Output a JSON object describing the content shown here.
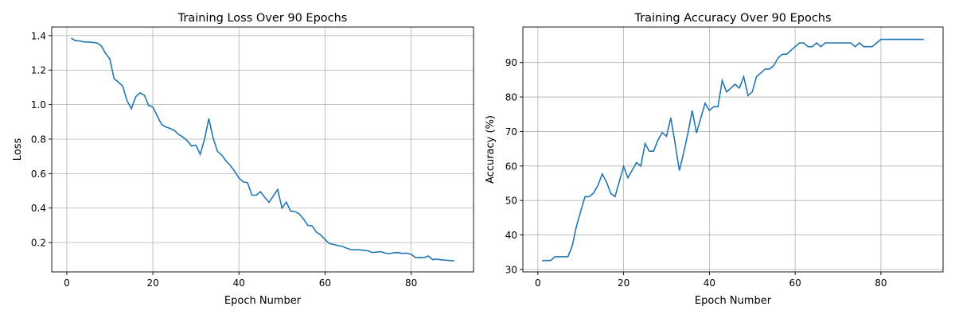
{
  "chart_data": [
    {
      "type": "line",
      "title": "Training Loss Over 90 Epochs",
      "xlabel": "Epoch Number",
      "ylabel": "Loss",
      "xlim": [
        -3.5,
        94.5
      ],
      "ylim": [
        0.03,
        1.45
      ],
      "xticks": [
        0,
        20,
        40,
        60,
        80
      ],
      "yticks": [
        0.2,
        0.4,
        0.6,
        0.8,
        1.0,
        1.2,
        1.4
      ],
      "ytick_labels": [
        "0.2",
        "0.4",
        "0.6",
        "0.8",
        "1.0",
        "1.2",
        "1.4"
      ],
      "grid": true,
      "color": "#1f77b4",
      "x": [
        1,
        2,
        3,
        4,
        5,
        6,
        7,
        8,
        9,
        10,
        11,
        12,
        13,
        14,
        15,
        16,
        17,
        18,
        19,
        20,
        21,
        22,
        23,
        24,
        25,
        26,
        27,
        28,
        29,
        30,
        31,
        32,
        33,
        34,
        35,
        36,
        37,
        38,
        39,
        40,
        41,
        42,
        43,
        44,
        45,
        46,
        47,
        48,
        49,
        50,
        51,
        52,
        53,
        54,
        55,
        56,
        57,
        58,
        59,
        60,
        61,
        62,
        63,
        64,
        65,
        66,
        67,
        68,
        69,
        70,
        71,
        72,
        73,
        74,
        75,
        76,
        77,
        78,
        79,
        80,
        81,
        82,
        83,
        84,
        85,
        86,
        87,
        88,
        89,
        90
      ],
      "y": [
        1.386,
        1.371,
        1.369,
        1.364,
        1.363,
        1.361,
        1.358,
        1.341,
        1.298,
        1.264,
        1.151,
        1.13,
        1.108,
        1.023,
        0.976,
        1.045,
        1.068,
        1.055,
        0.996,
        0.986,
        0.936,
        0.886,
        0.87,
        0.862,
        0.85,
        0.827,
        0.812,
        0.79,
        0.76,
        0.765,
        0.712,
        0.8,
        0.92,
        0.806,
        0.73,
        0.707,
        0.673,
        0.647,
        0.613,
        0.574,
        0.552,
        0.547,
        0.475,
        0.475,
        0.495,
        0.462,
        0.433,
        0.471,
        0.508,
        0.4,
        0.435,
        0.382,
        0.38,
        0.366,
        0.337,
        0.3,
        0.297,
        0.26,
        0.244,
        0.218,
        0.194,
        0.189,
        0.183,
        0.178,
        0.168,
        0.159,
        0.158,
        0.158,
        0.155,
        0.152,
        0.142,
        0.145,
        0.147,
        0.139,
        0.136,
        0.141,
        0.142,
        0.137,
        0.139,
        0.133,
        0.113,
        0.114,
        0.113,
        0.122,
        0.101,
        0.104,
        0.1,
        0.098,
        0.096,
        0.094
      ]
    },
    {
      "type": "line",
      "title": "Training Accuracy Over 90 Epochs",
      "xlabel": "Epoch Number",
      "ylabel": "Accuracy (%)",
      "xlim": [
        -3.5,
        94.5
      ],
      "ylim": [
        29.3,
        100.3
      ],
      "xticks": [
        0,
        20,
        40,
        60,
        80
      ],
      "yticks": [
        30,
        40,
        50,
        60,
        70,
        80,
        90
      ],
      "ytick_labels": [
        "30",
        "40",
        "50",
        "60",
        "70",
        "80",
        "90"
      ],
      "grid": true,
      "color": "#1f77b4",
      "x": [
        1,
        2,
        3,
        4,
        5,
        6,
        7,
        8,
        9,
        10,
        11,
        12,
        13,
        14,
        15,
        16,
        17,
        18,
        19,
        20,
        21,
        22,
        23,
        24,
        25,
        26,
        27,
        28,
        29,
        30,
        31,
        32,
        33,
        34,
        35,
        36,
        37,
        38,
        39,
        40,
        41,
        42,
        43,
        44,
        45,
        46,
        47,
        48,
        49,
        50,
        51,
        52,
        53,
        54,
        55,
        56,
        57,
        58,
        59,
        60,
        61,
        62,
        63,
        64,
        65,
        66,
        67,
        68,
        69,
        70,
        71,
        72,
        73,
        74,
        75,
        76,
        77,
        78,
        79,
        80,
        81,
        82,
        83,
        84,
        85,
        86,
        87,
        88,
        89,
        90
      ],
      "y": [
        32.6,
        32.6,
        32.6,
        33.7,
        33.7,
        33.7,
        33.7,
        36.8,
        42.5,
        46.9,
        51.1,
        51.1,
        52.2,
        54.4,
        57.7,
        55.4,
        52.1,
        51.1,
        55.5,
        59.9,
        56.6,
        58.8,
        61.0,
        60.0,
        66.5,
        64.3,
        64.3,
        67.5,
        69.7,
        68.6,
        74.0,
        66.5,
        58.7,
        63.8,
        69.5,
        76.1,
        69.6,
        73.9,
        78.2,
        76.1,
        77.2,
        77.2,
        84.8,
        81.5,
        82.6,
        83.7,
        82.6,
        85.9,
        80.4,
        81.5,
        85.9,
        87.0,
        88.1,
        88.1,
        89.1,
        91.3,
        92.4,
        92.4,
        93.5,
        94.6,
        95.7,
        95.7,
        94.6,
        94.6,
        95.7,
        94.6,
        95.7,
        95.7,
        95.7,
        95.7,
        95.7,
        95.7,
        95.7,
        94.6,
        95.7,
        94.6,
        94.6,
        94.6,
        95.7,
        96.7,
        96.7,
        96.7,
        96.7,
        96.7,
        96.7,
        96.7,
        96.7,
        96.7,
        96.7,
        96.7
      ]
    }
  ]
}
